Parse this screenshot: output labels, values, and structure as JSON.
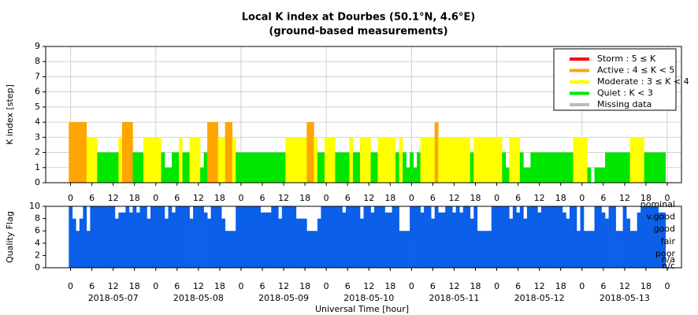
{
  "chart_data": [
    {
      "type": "bar",
      "title": "Local K index at Dourbes (50.1°N, 4.6°E)",
      "subtitle": "(ground-based measurements)",
      "ylabel": "K index [step]",
      "x": [
        0,
        1,
        2,
        3,
        4,
        5,
        6,
        7,
        8,
        9,
        10,
        11,
        12,
        13,
        14,
        15,
        16,
        17,
        18,
        19,
        20,
        21,
        22,
        23,
        24,
        25,
        26,
        27,
        28,
        29,
        30,
        31,
        32,
        33,
        34,
        35,
        36,
        37,
        38,
        39,
        40,
        41,
        42,
        43,
        44,
        45,
        46,
        47,
        48,
        49,
        50,
        51,
        52,
        53,
        54,
        55,
        56,
        57,
        58,
        59,
        60,
        61,
        62,
        63,
        64,
        65,
        66,
        67,
        68,
        69,
        70,
        71,
        72,
        73,
        74,
        75,
        76,
        77,
        78,
        79,
        80,
        81,
        82,
        83,
        84,
        85,
        86,
        87,
        88,
        89,
        90,
        91,
        92,
        93,
        94,
        95,
        96,
        97,
        98,
        99,
        100,
        101,
        102,
        103,
        104,
        105,
        106,
        107,
        108,
        109,
        110,
        111,
        112,
        113,
        114,
        115,
        116,
        117,
        118,
        119,
        120,
        121,
        122,
        123,
        124,
        125,
        126,
        127,
        128,
        129,
        130,
        131,
        132,
        133,
        134,
        135,
        136,
        137,
        138,
        139,
        140,
        141,
        142,
        143,
        144,
        145,
        146,
        147,
        148,
        149,
        150,
        151,
        152,
        153,
        154,
        155,
        156,
        157,
        158,
        159,
        160,
        161,
        162,
        163,
        164,
        165,
        166,
        167
      ],
      "values": [
        4,
        4,
        4,
        4,
        4,
        3,
        3,
        3,
        2,
        2,
        2,
        2,
        2,
        2,
        3,
        4,
        4,
        4,
        2,
        2,
        2,
        3,
        3,
        3,
        3,
        3,
        2,
        1,
        1,
        2,
        2,
        3,
        2,
        2,
        3,
        3,
        3,
        1,
        2,
        4,
        4,
        4,
        3,
        3,
        4,
        4,
        3,
        2,
        2,
        2,
        2,
        2,
        2,
        2,
        2,
        2,
        2,
        2,
        2,
        2,
        2,
        3,
        3,
        3,
        3,
        3,
        3,
        4,
        4,
        3,
        2,
        2,
        3,
        3,
        3,
        2,
        2,
        2,
        2,
        3,
        2,
        2,
        3,
        3,
        3,
        2,
        2,
        3,
        3,
        3,
        3,
        3,
        2,
        3,
        2,
        1,
        2,
        1,
        2,
        3,
        3,
        3,
        3,
        4,
        3,
        3,
        3,
        3,
        3,
        3,
        3,
        3,
        3,
        2,
        3,
        3,
        3,
        3,
        3,
        3,
        3,
        3,
        2,
        1,
        3,
        3,
        3,
        2,
        1,
        1,
        2,
        2,
        2,
        2,
        2,
        2,
        2,
        2,
        2,
        2,
        2,
        2,
        3,
        3,
        3,
        3,
        1,
        0,
        1,
        1,
        1,
        2,
        2,
        2,
        2,
        2,
        2,
        2,
        3,
        3,
        3,
        3,
        2,
        2,
        2,
        2,
        2,
        2
      ],
      "xlim": [
        -7,
        172
      ],
      "ylim": [
        0,
        9
      ],
      "xticks": [
        0,
        6,
        12,
        18,
        {
          "value": 24,
          "label": "0"
        },
        {
          "value": 30,
          "label": "6"
        },
        {
          "value": 36,
          "label": "12"
        },
        {
          "value": 42,
          "label": "18"
        },
        {
          "value": 48,
          "label": "0"
        },
        {
          "value": 54,
          "label": "6"
        },
        {
          "value": 60,
          "label": "12"
        },
        {
          "value": 66,
          "label": "18"
        },
        {
          "value": 72,
          "label": "0"
        },
        {
          "value": 78,
          "label": "6"
        },
        {
          "value": 84,
          "label": "12"
        },
        {
          "value": 90,
          "label": "18"
        },
        {
          "value": 96,
          "label": "0"
        },
        {
          "value": 102,
          "label": "6"
        },
        {
          "value": 108,
          "label": "12"
        },
        {
          "value": 114,
          "label": "18"
        },
        {
          "value": 120,
          "label": "0"
        },
        {
          "value": 126,
          "label": "6"
        },
        {
          "value": 132,
          "label": "12"
        },
        {
          "value": 138,
          "label": "18"
        },
        {
          "value": 144,
          "label": "0"
        },
        {
          "value": 150,
          "label": "6"
        },
        {
          "value": 156,
          "label": "12"
        },
        {
          "value": 162,
          "label": "18"
        },
        {
          "value": 168,
          "label": "0"
        }
      ],
      "yticks": [
        0,
        1,
        2,
        3,
        4,
        5,
        6,
        7,
        8,
        9
      ],
      "grid": true,
      "legend": {
        "position": "upper right",
        "items": [
          {
            "name": "Storm : 5 ≤ K",
            "color": "#ff0000",
            "min": 5
          },
          {
            "name": "Active : 4 ≤ K < 5",
            "color": "#ffa500",
            "min": 4
          },
          {
            "name": "Moderate : 3 ≤ K < 4",
            "color": "#ffff00",
            "min": 3
          },
          {
            "name": "Quiet : K < 3",
            "color": "#00e600",
            "min": 0
          },
          {
            "name": "Missing data",
            "color": "#bbbbbb"
          }
        ]
      }
    },
    {
      "type": "bar",
      "ylabel": "Quality Flag",
      "xlabel": "Universal Time [hour]",
      "color": "#0b5fe8",
      "x": [
        0,
        1,
        2,
        3,
        4,
        5,
        6,
        7,
        8,
        9,
        10,
        11,
        12,
        13,
        14,
        15,
        16,
        17,
        18,
        19,
        20,
        21,
        22,
        23,
        24,
        25,
        26,
        27,
        28,
        29,
        30,
        31,
        32,
        33,
        34,
        35,
        36,
        37,
        38,
        39,
        40,
        41,
        42,
        43,
        44,
        45,
        46,
        47,
        48,
        49,
        50,
        51,
        52,
        53,
        54,
        55,
        56,
        57,
        58,
        59,
        60,
        61,
        62,
        63,
        64,
        65,
        66,
        67,
        68,
        69,
        70,
        71,
        72,
        73,
        74,
        75,
        76,
        77,
        78,
        79,
        80,
        81,
        82,
        83,
        84,
        85,
        86,
        87,
        88,
        89,
        90,
        91,
        92,
        93,
        94,
        95,
        96,
        97,
        98,
        99,
        100,
        101,
        102,
        103,
        104,
        105,
        106,
        107,
        108,
        109,
        110,
        111,
        112,
        113,
        114,
        115,
        116,
        117,
        118,
        119,
        120,
        121,
        122,
        123,
        124,
        125,
        126,
        127,
        128,
        129,
        130,
        131,
        132,
        133,
        134,
        135,
        136,
        137,
        138,
        139,
        140,
        141,
        142,
        143,
        144,
        145,
        146,
        147,
        148,
        149,
        150,
        151,
        152,
        153,
        154,
        155,
        156,
        157,
        158,
        159,
        160,
        161,
        162,
        163,
        164,
        165,
        166,
        167
      ],
      "values": [
        10,
        8,
        6,
        8,
        10,
        6,
        10,
        10,
        10,
        10,
        10,
        10,
        10,
        8,
        9,
        9,
        10,
        9,
        10,
        9,
        10,
        10,
        8,
        10,
        10,
        10,
        10,
        8,
        10,
        9,
        10,
        10,
        10,
        10,
        8,
        10,
        10,
        10,
        9,
        8,
        10,
        10,
        10,
        8,
        6,
        6,
        6,
        10,
        10,
        10,
        10,
        10,
        10,
        10,
        9,
        9,
        9,
        10,
        10,
        8,
        10,
        10,
        10,
        10,
        8,
        8,
        8,
        6,
        6,
        6,
        8,
        10,
        10,
        10,
        10,
        10,
        10,
        9,
        10,
        10,
        10,
        10,
        8,
        10,
        10,
        9,
        10,
        10,
        10,
        9,
        9,
        10,
        10,
        6,
        6,
        6,
        10,
        10,
        10,
        9,
        10,
        10,
        8,
        10,
        9,
        9,
        10,
        10,
        9,
        10,
        9,
        10,
        10,
        8,
        10,
        6,
        6,
        6,
        6,
        10,
        10,
        10,
        10,
        10,
        8,
        10,
        9,
        10,
        8,
        10,
        10,
        10,
        9,
        10,
        10,
        10,
        10,
        10,
        10,
        9,
        8,
        10,
        10,
        6,
        10,
        6,
        6,
        6,
        10,
        10,
        9,
        8,
        10,
        10,
        6,
        6,
        10,
        8,
        6,
        6,
        9,
        10,
        10,
        10,
        10,
        10,
        9,
        9
      ],
      "xlim": [
        -7,
        172
      ],
      "ylim": [
        0,
        10
      ],
      "xticks": [
        0,
        6,
        12,
        18,
        {
          "value": 24,
          "label": "0"
        },
        {
          "value": 30,
          "label": "6"
        },
        {
          "value": 36,
          "label": "12"
        },
        {
          "value": 42,
          "label": "18"
        },
        {
          "value": 48,
          "label": "0"
        },
        {
          "value": 54,
          "label": "6"
        },
        {
          "value": 60,
          "label": "12"
        },
        {
          "value": 66,
          "label": "18"
        },
        {
          "value": 72,
          "label": "0"
        },
        {
          "value": 78,
          "label": "6"
        },
        {
          "value": 84,
          "label": "12"
        },
        {
          "value": 90,
          "label": "18"
        },
        {
          "value": 96,
          "label": "0"
        },
        {
          "value": 102,
          "label": "6"
        },
        {
          "value": 108,
          "label": "12"
        },
        {
          "value": 114,
          "label": "18"
        },
        {
          "value": 120,
          "label": "0"
        },
        {
          "value": 126,
          "label": "6"
        },
        {
          "value": 132,
          "label": "12"
        },
        {
          "value": 138,
          "label": "18"
        },
        {
          "value": 144,
          "label": "0"
        },
        {
          "value": 150,
          "label": "6"
        },
        {
          "value": 156,
          "label": "12"
        },
        {
          "value": 162,
          "label": "18"
        },
        {
          "value": 168,
          "label": "0"
        }
      ],
      "xdates": [
        {
          "value": 12,
          "label": "2018-05-07"
        },
        {
          "value": 36,
          "label": "2018-05-08"
        },
        {
          "value": 60,
          "label": "2018-05-09"
        },
        {
          "value": 84,
          "label": "2018-05-10"
        },
        {
          "value": 108,
          "label": "2018-05-11"
        },
        {
          "value": 132,
          "label": "2018-05-12"
        },
        {
          "value": 156,
          "label": "2018-05-13"
        }
      ],
      "yticks": [
        0,
        2,
        4,
        6,
        8,
        10
      ],
      "y2lim": [
        0,
        10
      ],
      "y2ticks": [
        {
          "value": 10,
          "label": "nominal"
        },
        {
          "value": 8,
          "label": "v.good"
        },
        {
          "value": 6,
          "label": "good"
        },
        {
          "value": 4,
          "label": "fair"
        },
        {
          "value": 2,
          "label": "poor"
        },
        {
          "value": 1,
          "label": "n/a"
        },
        {
          "value": 0,
          "label": "n/c"
        }
      ]
    }
  ]
}
